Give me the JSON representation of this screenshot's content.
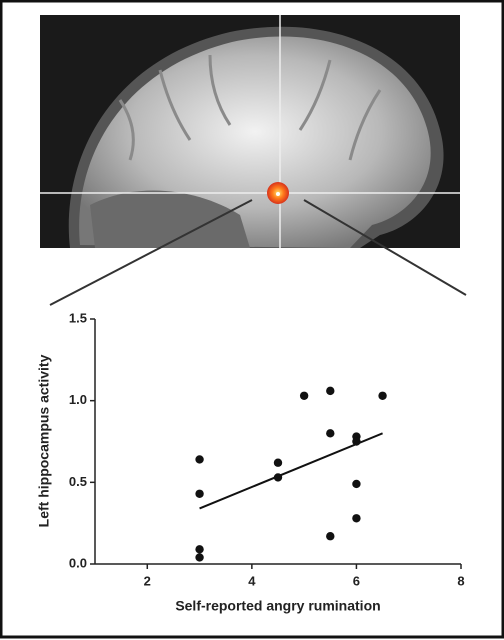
{
  "chart_data": {
    "type": "scatter",
    "xlabel": "Self-reported angry rumination",
    "ylabel": "Left hippocampus activity",
    "x": [
      3,
      3,
      3,
      3,
      4.5,
      4.5,
      5,
      5.5,
      5.5,
      5.5,
      6,
      6,
      6,
      6,
      6.5
    ],
    "values": [
      0.64,
      0.43,
      0.09,
      0.04,
      0.62,
      0.53,
      1.03,
      1.06,
      0.8,
      0.17,
      0.78,
      0.75,
      0.49,
      0.28,
      1.03
    ],
    "color": "#111111",
    "fit_line": {
      "x": [
        3,
        6.5
      ],
      "y": [
        0.34,
        0.8
      ],
      "color": "#111111"
    },
    "xlim": [
      1,
      8
    ],
    "xticks": [
      2,
      4,
      6,
      8
    ],
    "ylim": [
      0,
      1.5
    ],
    "yticks": [
      {
        "value": 0,
        "label": "0.0"
      },
      0.5,
      {
        "value": 1,
        "label": "1.0"
      },
      1.5
    ]
  }
}
